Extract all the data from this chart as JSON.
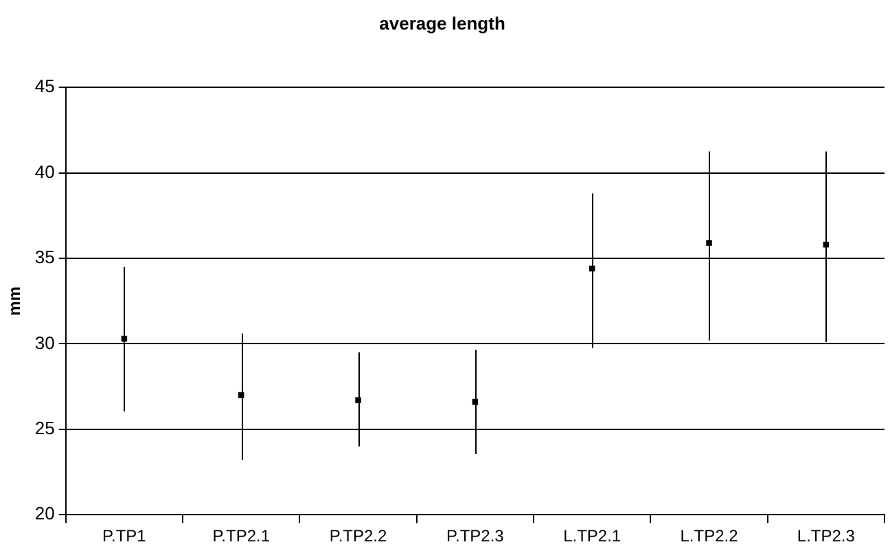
{
  "chart_data": {
    "type": "scatter",
    "title": "average length",
    "ylabel": "mm",
    "categories": [
      "P.TP1",
      "P.TP2.1",
      "P.TP2.2",
      "P.TP2.3",
      "L.TP2.1",
      "L.TP2.2",
      "L.TP2.3"
    ],
    "values": [
      30.3,
      27.0,
      26.7,
      26.6,
      34.4,
      35.9,
      35.8
    ],
    "errors": [
      [
        26.05,
        34.5
      ],
      [
        23.2,
        30.6
      ],
      [
        24.0,
        29.5
      ],
      [
        23.55,
        29.65
      ],
      [
        29.75,
        38.8
      ],
      [
        30.2,
        41.25
      ],
      [
        30.1,
        41.25
      ]
    ],
    "color": "#000000",
    "marker": "square",
    "ylim": [
      20,
      45
    ],
    "yticks": [
      20,
      25,
      30,
      35,
      40,
      45
    ],
    "grid": "y",
    "legend": false
  }
}
